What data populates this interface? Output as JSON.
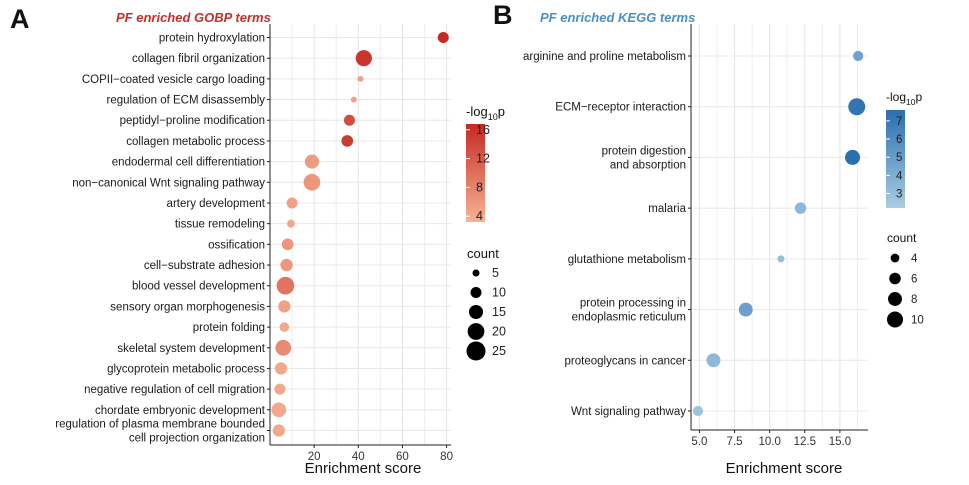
{
  "panel_a": {
    "letter": "A",
    "title": "PF enriched GOBP terms",
    "title_color": "#c0322a",
    "xlabel": "Enrichment score",
    "color_legend": {
      "title_pre": "-log",
      "title_sub": "10",
      "title_post": "p",
      "ticks": [
        "16",
        "12",
        "8",
        "4"
      ],
      "low_color": "#f6b394",
      "high_color": "#c62a22"
    },
    "size_legend": {
      "title": "count",
      "labels": [
        "5",
        "10",
        "15",
        "20",
        "25"
      ]
    }
  },
  "panel_b": {
    "letter": "B",
    "title": "PF enriched KEGG terms",
    "title_color": "#4a8fc4",
    "xlabel": "Enrichment score",
    "color_legend": {
      "title_pre": "-log",
      "title_sub": "10",
      "title_post": "p",
      "ticks": [
        "7",
        "6",
        "5",
        "4",
        "3"
      ],
      "low_color": "#a9cde3",
      "high_color": "#2a6fb0"
    },
    "size_legend": {
      "title": "count",
      "labels": [
        "4",
        "6",
        "8",
        "10"
      ]
    }
  },
  "chart_data": [
    {
      "type": "scatter",
      "title": "PF enriched GOBP terms",
      "xlabel": "Enrichment score",
      "xlim": [
        0,
        82
      ],
      "xticks": [
        "20",
        "40",
        "60",
        "80"
      ],
      "grid": true,
      "color_metric": "-log10p",
      "size_metric": "count",
      "color_range": [
        4,
        16
      ],
      "size_range": [
        5,
        25
      ],
      "terms": [
        {
          "label": "protein hydroxylation",
          "x": 78.5,
          "count": 10,
          "neglog10p": 16.0
        },
        {
          "label": "collagen fibril organization",
          "x": 42.5,
          "count": 19,
          "neglog10p": 15.0
        },
        {
          "label": "COPII−coated vesicle cargo loading",
          "x": 41.0,
          "count": 4,
          "neglog10p": 5.5
        },
        {
          "label": "regulation of ECM disassembly",
          "x": 38.0,
          "count": 4,
          "neglog10p": 5.5
        },
        {
          "label": "peptidyl−proline modification",
          "x": 36.0,
          "count": 10,
          "neglog10p": 13.0
        },
        {
          "label": "collagen metabolic process",
          "x": 35.0,
          "count": 11,
          "neglog10p": 14.5
        },
        {
          "label": "endodermal cell differentiation",
          "x": 19.0,
          "count": 15,
          "neglog10p": 6.0
        },
        {
          "label": "non−canonical Wnt signaling pathway",
          "x": 19.0,
          "count": 20,
          "neglog10p": 6.5
        },
        {
          "label": "artery development",
          "x": 10.0,
          "count": 10,
          "neglog10p": 5.5
        },
        {
          "label": "tissue remodeling",
          "x": 9.5,
          "count": 6,
          "neglog10p": 5.0
        },
        {
          "label": "ossification",
          "x": 8.0,
          "count": 11,
          "neglog10p": 6.5
        },
        {
          "label": "cell−substrate adhesion",
          "x": 7.5,
          "count": 12,
          "neglog10p": 6.5
        },
        {
          "label": "blood vessel development",
          "x": 7.0,
          "count": 22,
          "neglog10p": 9.5
        },
        {
          "label": "sensory organ morphogenesis",
          "x": 6.5,
          "count": 12,
          "neglog10p": 5.5
        },
        {
          "label": "protein folding",
          "x": 6.5,
          "count": 8,
          "neglog10p": 5.0
        },
        {
          "label": "skeletal system development",
          "x": 6.0,
          "count": 18,
          "neglog10p": 7.5
        },
        {
          "label": "glycoprotein metabolic process",
          "x": 5.0,
          "count": 12,
          "neglog10p": 5.0
        },
        {
          "label": "negative regulation of cell migration",
          "x": 4.5,
          "count": 10,
          "neglog10p": 5.0
        },
        {
          "label": "chordate embryonic development",
          "x": 4.0,
          "count": 16,
          "neglog10p": 5.0
        },
        {
          "label": "regulation of plasma membrane bounded\ncell projection organization",
          "x": 4.0,
          "count": 12,
          "neglog10p": 5.0
        }
      ]
    },
    {
      "type": "scatter",
      "title": "PF enriched KEGG terms",
      "xlabel": "Enrichment score",
      "xlim": [
        4.4,
        17.0
      ],
      "xticks": [
        "5.0",
        "7.5",
        "10.0",
        "12.5",
        "15.0"
      ],
      "grid": true,
      "color_metric": "-log10p",
      "size_metric": "count",
      "color_range": [
        2.5,
        7.5
      ],
      "size_range": [
        3,
        11
      ],
      "terms": [
        {
          "label": "arginine and proline metabolism",
          "x": 16.3,
          "count": 5,
          "neglog10p": 4.8
        },
        {
          "label": "ECM−receptor interaction",
          "x": 16.2,
          "count": 11,
          "neglog10p": 7.2
        },
        {
          "label": "protein digestion\nand absorption",
          "x": 15.9,
          "count": 9,
          "neglog10p": 7.5
        },
        {
          "label": "malaria",
          "x": 12.2,
          "count": 6,
          "neglog10p": 3.6
        },
        {
          "label": "glutathione metabolism",
          "x": 10.8,
          "count": 3,
          "neglog10p": 3.3
        },
        {
          "label": "protein processing in\nendoplasmic reticulum",
          "x": 8.3,
          "count": 8,
          "neglog10p": 4.9
        },
        {
          "label": "proteoglycans in cancer",
          "x": 6.0,
          "count": 8,
          "neglog10p": 3.6
        },
        {
          "label": "Wnt signaling pathway",
          "x": 4.9,
          "count": 5,
          "neglog10p": 3.0
        }
      ]
    }
  ]
}
